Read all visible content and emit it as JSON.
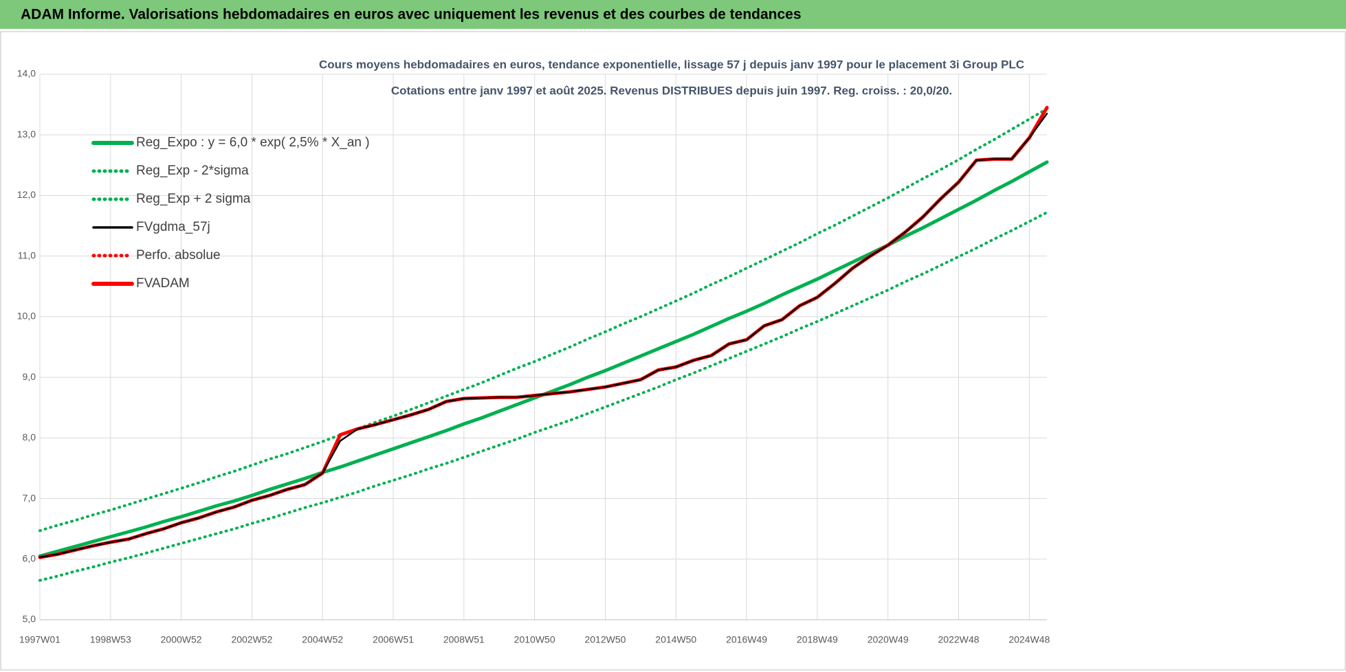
{
  "header": {
    "title": "ADAM Informe. Valorisations hebdomadaires en euros avec uniquement les revenus et des courbes de tendances"
  },
  "chart_data": {
    "type": "line",
    "title": "Cours moyens  hebdomadaires en euros, tendance exponentielle, lissage 57 j depuis janv 1997  pour le placement 3i Group PLC",
    "subtitle": "Cotations entre janv 1997 et août 2025.  Revenus DISTRIBUES depuis juin 1997.  Reg. croiss. : 20,0/20.",
    "categories": [
      "1997W01",
      null,
      null,
      null,
      "1998W53",
      null,
      null,
      null,
      "2000W52",
      null,
      null,
      null,
      "2002W52",
      null,
      null,
      null,
      "2004W52",
      null,
      null,
      null,
      "2006W51",
      null,
      null,
      null,
      "2008W51",
      null,
      null,
      null,
      "2010W50",
      null,
      null,
      null,
      "2012W50",
      null,
      null,
      null,
      "2014W50",
      null,
      null,
      null,
      "2016W49",
      null,
      null,
      null,
      "2018W49",
      null,
      null,
      null,
      "2020W49",
      null,
      null,
      null,
      "2022W48",
      null,
      null,
      null,
      "2024W48",
      null
    ],
    "ylim": [
      5,
      14
    ],
    "yticks": [
      {
        "value": 5,
        "label": "5,0"
      },
      {
        "value": 6,
        "label": "6,0"
      },
      {
        "value": 7,
        "label": "7,0"
      },
      {
        "value": 8,
        "label": "8,0"
      },
      {
        "value": 9,
        "label": "9,0"
      },
      {
        "value": 10,
        "label": "10,0"
      },
      {
        "value": 11,
        "label": "11,0"
      },
      {
        "value": 12,
        "label": "12,0"
      },
      {
        "value": 13,
        "label": "13,0"
      },
      {
        "value": 14,
        "label": "14,0"
      }
    ],
    "grid": true,
    "legend": "top-left",
    "series": [
      {
        "name": "Reg_Expo : y = 6,0 * exp( 2,5% *  X_an )",
        "color": "#00b050",
        "style": "solid",
        "values": [
          6.05,
          6.13,
          6.21,
          6.29,
          6.37,
          6.45,
          6.53,
          6.62,
          6.7,
          6.79,
          6.88,
          6.96,
          7.05,
          7.15,
          7.24,
          7.33,
          7.43,
          7.52,
          7.62,
          7.72,
          7.82,
          7.92,
          8.02,
          8.12,
          8.23,
          8.33,
          8.44,
          8.55,
          8.66,
          8.77,
          8.88,
          9.0,
          9.11,
          9.23,
          9.35,
          9.47,
          9.59,
          9.71,
          9.84,
          9.97,
          10.09,
          10.22,
          10.36,
          10.49,
          10.62,
          10.76,
          10.9,
          11.04,
          11.18,
          11.33,
          11.47,
          11.62,
          11.77,
          11.92,
          12.08,
          12.23,
          12.39,
          12.55
        ]
      },
      {
        "name": "Reg_Exp - 2*sigma",
        "color": "#00b050",
        "style": "dotted",
        "values": [
          5.65,
          5.72,
          5.8,
          5.87,
          5.95,
          6.02,
          6.1,
          6.18,
          6.26,
          6.34,
          6.42,
          6.5,
          6.59,
          6.67,
          6.76,
          6.85,
          6.93,
          7.02,
          7.11,
          7.21,
          7.3,
          7.39,
          7.49,
          7.58,
          7.68,
          7.78,
          7.88,
          7.98,
          8.09,
          8.19,
          8.29,
          8.4,
          8.51,
          8.62,
          8.73,
          8.84,
          8.96,
          9.07,
          9.19,
          9.31,
          9.43,
          9.55,
          9.67,
          9.8,
          9.92,
          10.05,
          10.18,
          10.31,
          10.44,
          10.58,
          10.71,
          10.85,
          10.99,
          11.13,
          11.28,
          11.42,
          11.57,
          11.72
        ]
      },
      {
        "name": "Reg_Exp + 2 sigma",
        "color": "#00b050",
        "style": "dotted",
        "values": [
          6.47,
          6.56,
          6.64,
          6.73,
          6.81,
          6.9,
          6.99,
          7.08,
          7.17,
          7.26,
          7.36,
          7.45,
          7.55,
          7.65,
          7.74,
          7.84,
          7.94,
          8.05,
          8.15,
          8.26,
          8.36,
          8.47,
          8.58,
          8.69,
          8.8,
          8.91,
          9.03,
          9.15,
          9.26,
          9.38,
          9.5,
          9.63,
          9.75,
          9.88,
          10.0,
          10.13,
          10.26,
          10.39,
          10.53,
          10.66,
          10.8,
          10.94,
          11.08,
          11.22,
          11.37,
          11.51,
          11.66,
          11.81,
          11.96,
          12.12,
          12.28,
          12.43,
          12.59,
          12.76,
          12.92,
          13.09,
          13.26,
          13.43
        ]
      },
      {
        "name": "FVgdma_57j",
        "color": "#000000",
        "style": "solid",
        "values": [
          6.03,
          6.08,
          6.15,
          6.22,
          6.28,
          6.33,
          6.42,
          6.5,
          6.6,
          6.68,
          6.78,
          6.86,
          6.97,
          7.05,
          7.15,
          7.23,
          7.42,
          7.95,
          8.15,
          8.22,
          8.3,
          8.38,
          8.47,
          8.6,
          8.65,
          8.66,
          8.67,
          8.67,
          8.7,
          8.73,
          8.76,
          8.8,
          8.84,
          8.9,
          8.96,
          9.12,
          9.17,
          9.28,
          9.36,
          9.55,
          9.62,
          9.85,
          9.95,
          10.18,
          10.32,
          10.55,
          10.8,
          11.0,
          11.18,
          11.4,
          11.65,
          11.95,
          12.22,
          12.58,
          12.6,
          12.6,
          12.95,
          13.35
        ]
      },
      {
        "name": "Perfo. absolue",
        "color": "#ff0000",
        "style": "dotted",
        "values": [
          6.03,
          6.08,
          6.15,
          6.22,
          6.28,
          6.33,
          6.42,
          6.5,
          6.6,
          6.68,
          6.78,
          6.86,
          6.97,
          7.05,
          7.15,
          7.23,
          7.42,
          8.05,
          8.15,
          8.22,
          8.3,
          8.38,
          8.47,
          8.6,
          8.65,
          8.66,
          8.67,
          8.67,
          8.7,
          8.73,
          8.76,
          8.8,
          8.84,
          8.9,
          8.96,
          9.12,
          9.17,
          9.28,
          9.36,
          9.55,
          9.62,
          9.85,
          9.95,
          10.18,
          10.32,
          10.55,
          10.8,
          11.0,
          11.18,
          11.4,
          11.65,
          11.95,
          12.22,
          12.58,
          12.6,
          12.6,
          12.95,
          13.45
        ]
      },
      {
        "name": "FVADAM",
        "color": "#ff0000",
        "style": "solid",
        "values": [
          6.03,
          6.08,
          6.15,
          6.22,
          6.28,
          6.33,
          6.42,
          6.5,
          6.6,
          6.68,
          6.78,
          6.86,
          6.97,
          7.05,
          7.15,
          7.23,
          7.42,
          8.05,
          8.15,
          8.22,
          8.3,
          8.38,
          8.47,
          8.6,
          8.65,
          8.66,
          8.67,
          8.67,
          8.7,
          8.73,
          8.76,
          8.8,
          8.84,
          8.9,
          8.96,
          9.12,
          9.17,
          9.28,
          9.36,
          9.55,
          9.62,
          9.85,
          9.95,
          10.18,
          10.32,
          10.55,
          10.8,
          11.0,
          11.18,
          11.4,
          11.65,
          11.95,
          12.22,
          12.58,
          12.6,
          12.6,
          12.95,
          13.45
        ]
      }
    ]
  }
}
